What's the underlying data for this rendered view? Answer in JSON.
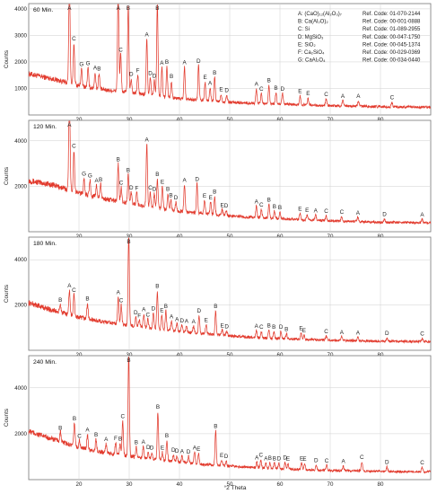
{
  "colors": {
    "trace": "#e23b2e",
    "grid": "#cfcfcf",
    "frame": "#777777"
  },
  "legend": [
    {
      "phase": "A: (CaO)₁₂(Al₂O₃)₇",
      "ref": "Ref. Code: 01-070-2144"
    },
    {
      "phase": "B: Ca(Al₂O)₂",
      "ref": "Ref. Code: 00-001-0888"
    },
    {
      "phase": "C: Si",
      "ref": "Ref. Code: 01-089-2955"
    },
    {
      "phase": "D: MgSiO₃",
      "ref": "Ref. Code: 00-047-1750"
    },
    {
      "phase": "E: SiO₂",
      "ref": "Ref. Code: 00-045-1374"
    },
    {
      "phase": "F: Ca₂SiO₄",
      "ref": "Ref. Code: 00-029-0369"
    },
    {
      "phase": "G: CaAl₂O₄",
      "ref": "Ref. Code: 00-034-0440"
    }
  ],
  "chart_data": [
    {
      "type": "line",
      "title": "60 Min.",
      "ylabel": "Counts",
      "xlabel": "°2 Theta",
      "xlim": [
        10,
        90
      ],
      "ylim": [
        0,
        4200
      ],
      "yticks": [
        1000,
        2000,
        3000,
        4000
      ],
      "xticks": [
        20,
        30,
        40,
        50,
        60,
        70,
        80
      ],
      "baseline": [
        [
          10,
          1550
        ],
        [
          15,
          1350
        ],
        [
          20,
          1100
        ],
        [
          25,
          950
        ],
        [
          30,
          850
        ],
        [
          35,
          720
        ],
        [
          40,
          620
        ],
        [
          45,
          540
        ],
        [
          50,
          480
        ],
        [
          55,
          440
        ],
        [
          60,
          410
        ],
        [
          65,
          380
        ],
        [
          70,
          350
        ],
        [
          75,
          330
        ],
        [
          80,
          310
        ],
        [
          90,
          290
        ]
      ],
      "peaks": [
        {
          "x": 18.1,
          "y": 4050,
          "label": "A"
        },
        {
          "x": 19.0,
          "y": 1550,
          "label": "C"
        },
        {
          "x": 20.5,
          "y": 650,
          "label": "G"
        },
        {
          "x": 21.8,
          "y": 720,
          "label": "G"
        },
        {
          "x": 23.2,
          "y": 600,
          "label": "A"
        },
        {
          "x": 24.0,
          "y": 580,
          "label": "B"
        },
        {
          "x": 27.8,
          "y": 3800,
          "label": "A"
        },
        {
          "x": 28.3,
          "y": 1400,
          "label": "C"
        },
        {
          "x": 29.8,
          "y": 3200,
          "label": "B"
        },
        {
          "x": 30.4,
          "y": 520,
          "label": "D"
        },
        {
          "x": 31.7,
          "y": 700,
          "label": "F"
        },
        {
          "x": 33.5,
          "y": 2100,
          "label": "A"
        },
        {
          "x": 34.2,
          "y": 650,
          "label": "D"
        },
        {
          "x": 35.0,
          "y": 580,
          "label": "D"
        },
        {
          "x": 35.6,
          "y": 3500,
          "label": "B"
        },
        {
          "x": 36.5,
          "y": 1100,
          "label": "A"
        },
        {
          "x": 37.5,
          "y": 1150,
          "label": "B"
        },
        {
          "x": 38.4,
          "y": 620,
          "label": "B"
        },
        {
          "x": 41.0,
          "y": 1200,
          "label": "A"
        },
        {
          "x": 43.8,
          "y": 1300,
          "label": "D"
        },
        {
          "x": 45.1,
          "y": 700,
          "label": "E"
        },
        {
          "x": 46.1,
          "y": 500,
          "label": "A"
        },
        {
          "x": 47.0,
          "y": 900,
          "label": "B"
        },
        {
          "x": 48.3,
          "y": 280,
          "label": "E"
        },
        {
          "x": 49.4,
          "y": 260,
          "label": "D"
        },
        {
          "x": 55.3,
          "y": 550,
          "label": "A"
        },
        {
          "x": 56.3,
          "y": 370,
          "label": "C"
        },
        {
          "x": 57.8,
          "y": 700,
          "label": "B"
        },
        {
          "x": 59.2,
          "y": 420,
          "label": "B"
        },
        {
          "x": 60.5,
          "y": 390,
          "label": "D"
        },
        {
          "x": 64.0,
          "y": 330,
          "label": "E"
        },
        {
          "x": 65.6,
          "y": 260,
          "label": "E"
        },
        {
          "x": 69.2,
          "y": 240,
          "label": "C"
        },
        {
          "x": 72.5,
          "y": 200,
          "label": "A"
        },
        {
          "x": 75.6,
          "y": 200,
          "label": "A"
        },
        {
          "x": 82.3,
          "y": 170,
          "label": "C"
        }
      ]
    },
    {
      "type": "line",
      "title": "120 Min.",
      "ylabel": "Counts",
      "xlabel": "°2 Theta",
      "xlim": [
        10,
        90
      ],
      "ylim": [
        0,
        4900
      ],
      "yticks": [
        2000,
        4000
      ],
      "xticks": [
        20,
        30,
        40,
        50,
        60,
        70,
        80
      ],
      "baseline": [
        [
          10,
          2250
        ],
        [
          15,
          2050
        ],
        [
          20,
          1700
        ],
        [
          25,
          1450
        ],
        [
          30,
          1250
        ],
        [
          35,
          1050
        ],
        [
          40,
          900
        ],
        [
          45,
          790
        ],
        [
          50,
          700
        ],
        [
          55,
          630
        ],
        [
          60,
          570
        ],
        [
          65,
          520
        ],
        [
          70,
          480
        ],
        [
          75,
          450
        ],
        [
          80,
          420
        ],
        [
          90,
          390
        ]
      ],
      "peaks": [
        {
          "x": 18.1,
          "y": 4600,
          "label": "A"
        },
        {
          "x": 19.0,
          "y": 1800,
          "label": "C"
        },
        {
          "x": 21.0,
          "y": 700,
          "label": "G"
        },
        {
          "x": 22.2,
          "y": 680,
          "label": "G"
        },
        {
          "x": 23.5,
          "y": 520,
          "label": "A"
        },
        {
          "x": 24.3,
          "y": 600,
          "label": "B"
        },
        {
          "x": 27.8,
          "y": 1650,
          "label": "B"
        },
        {
          "x": 28.4,
          "y": 650,
          "label": "C"
        },
        {
          "x": 29.8,
          "y": 1250,
          "label": "B"
        },
        {
          "x": 30.4,
          "y": 500,
          "label": "D"
        },
        {
          "x": 31.5,
          "y": 520,
          "label": "F"
        },
        {
          "x": 33.5,
          "y": 2750,
          "label": "A"
        },
        {
          "x": 34.2,
          "y": 650,
          "label": "C"
        },
        {
          "x": 35.0,
          "y": 620,
          "label": "D"
        },
        {
          "x": 35.6,
          "y": 1300,
          "label": "B"
        },
        {
          "x": 36.6,
          "y": 1000,
          "label": "E"
        },
        {
          "x": 37.7,
          "y": 700,
          "label": "B"
        },
        {
          "x": 38.3,
          "y": 450,
          "label": "B"
        },
        {
          "x": 39.3,
          "y": 380,
          "label": "D"
        },
        {
          "x": 41.0,
          "y": 1200,
          "label": "A"
        },
        {
          "x": 43.5,
          "y": 1300,
          "label": "D"
        },
        {
          "x": 45.0,
          "y": 600,
          "label": "E"
        },
        {
          "x": 46.2,
          "y": 540,
          "label": "E"
        },
        {
          "x": 47.0,
          "y": 800,
          "label": "B"
        },
        {
          "x": 48.5,
          "y": 250,
          "label": "E"
        },
        {
          "x": 49.3,
          "y": 230,
          "label": "D"
        },
        {
          "x": 55.3,
          "y": 500,
          "label": "A"
        },
        {
          "x": 56.3,
          "y": 370,
          "label": "C"
        },
        {
          "x": 57.8,
          "y": 600,
          "label": "B"
        },
        {
          "x": 58.9,
          "y": 330,
          "label": "B"
        },
        {
          "x": 60.0,
          "y": 300,
          "label": "B"
        },
        {
          "x": 64.0,
          "y": 280,
          "label": "E"
        },
        {
          "x": 65.4,
          "y": 240,
          "label": "E"
        },
        {
          "x": 67.1,
          "y": 230,
          "label": "A"
        },
        {
          "x": 69.2,
          "y": 220,
          "label": "C"
        },
        {
          "x": 72.3,
          "y": 200,
          "label": "C"
        },
        {
          "x": 75.5,
          "y": 190,
          "label": "A"
        },
        {
          "x": 80.8,
          "y": 150,
          "label": "D"
        },
        {
          "x": 88.3,
          "y": 150,
          "label": "A"
        }
      ]
    },
    {
      "type": "line",
      "title": "180 Min.",
      "ylabel": "Counts",
      "xlabel": "°2 Theta",
      "xlim": [
        10,
        90
      ],
      "ylim": [
        0,
        5000
      ],
      "yticks": [
        2000,
        4000
      ],
      "xticks": [
        20,
        30,
        40,
        50,
        60,
        70,
        80
      ],
      "baseline": [
        [
          10,
          2100
        ],
        [
          15,
          1750
        ],
        [
          20,
          1450
        ],
        [
          25,
          1250
        ],
        [
          30,
          1100
        ],
        [
          35,
          950
        ],
        [
          40,
          830
        ],
        [
          45,
          730
        ],
        [
          50,
          640
        ],
        [
          55,
          570
        ],
        [
          60,
          520
        ],
        [
          65,
          480
        ],
        [
          70,
          450
        ],
        [
          75,
          420
        ],
        [
          80,
          400
        ],
        [
          90,
          380
        ]
      ],
      "peaks": [
        {
          "x": 16.3,
          "y": 350,
          "label": "B"
        },
        {
          "x": 18.1,
          "y": 1100,
          "label": "A"
        },
        {
          "x": 19.0,
          "y": 950,
          "label": "C"
        },
        {
          "x": 21.7,
          "y": 700,
          "label": "B"
        },
        {
          "x": 27.8,
          "y": 1200,
          "label": "A"
        },
        {
          "x": 28.4,
          "y": 850,
          "label": "C"
        },
        {
          "x": 29.9,
          "y": 3950,
          "label": "B"
        },
        {
          "x": 31.3,
          "y": 400,
          "label": "D"
        },
        {
          "x": 32.0,
          "y": 280,
          "label": "F"
        },
        {
          "x": 32.9,
          "y": 600,
          "label": "A"
        },
        {
          "x": 33.7,
          "y": 380,
          "label": "C"
        },
        {
          "x": 34.8,
          "y": 700,
          "label": "D"
        },
        {
          "x": 35.6,
          "y": 1700,
          "label": "B"
        },
        {
          "x": 36.5,
          "y": 650,
          "label": "E"
        },
        {
          "x": 37.3,
          "y": 850,
          "label": "B"
        },
        {
          "x": 38.4,
          "y": 420,
          "label": "A"
        },
        {
          "x": 39.5,
          "y": 330,
          "label": "A"
        },
        {
          "x": 40.5,
          "y": 300,
          "label": "D"
        },
        {
          "x": 41.4,
          "y": 280,
          "label": "A"
        },
        {
          "x": 42.8,
          "y": 300,
          "label": "A"
        },
        {
          "x": 43.9,
          "y": 800,
          "label": "D"
        },
        {
          "x": 45.3,
          "y": 400,
          "label": "E"
        },
        {
          "x": 47.2,
          "y": 1050,
          "label": "B"
        },
        {
          "x": 48.5,
          "y": 230,
          "label": "E"
        },
        {
          "x": 49.4,
          "y": 200,
          "label": "D"
        },
        {
          "x": 55.3,
          "y": 300,
          "label": "A"
        },
        {
          "x": 56.3,
          "y": 280,
          "label": "C"
        },
        {
          "x": 57.8,
          "y": 350,
          "label": "B"
        },
        {
          "x": 58.8,
          "y": 300,
          "label": "B"
        },
        {
          "x": 60.2,
          "y": 320,
          "label": "D"
        },
        {
          "x": 61.3,
          "y": 230,
          "label": "B"
        },
        {
          "x": 64.2,
          "y": 280,
          "label": "E"
        },
        {
          "x": 64.8,
          "y": 200,
          "label": "E"
        },
        {
          "x": 69.2,
          "y": 180,
          "label": "C"
        },
        {
          "x": 72.3,
          "y": 160,
          "label": "A"
        },
        {
          "x": 75.5,
          "y": 160,
          "label": "A"
        },
        {
          "x": 81.3,
          "y": 160,
          "label": "D"
        },
        {
          "x": 88.3,
          "y": 150,
          "label": "C"
        }
      ]
    },
    {
      "type": "line",
      "title": "240 Min.",
      "ylabel": "Counts",
      "xlabel": "°2 Theta",
      "xlim": [
        10,
        90
      ],
      "ylim": [
        0,
        5400
      ],
      "yticks": [
        2000,
        4000
      ],
      "xticks": [
        20,
        30,
        40,
        50,
        60,
        70,
        80
      ],
      "baseline": [
        [
          10,
          2100
        ],
        [
          15,
          1750
        ],
        [
          20,
          1400
        ],
        [
          25,
          1180
        ],
        [
          30,
          1020
        ],
        [
          35,
          880
        ],
        [
          40,
          760
        ],
        [
          45,
          660
        ],
        [
          50,
          580
        ],
        [
          55,
          520
        ],
        [
          60,
          470
        ],
        [
          65,
          430
        ],
        [
          70,
          400
        ],
        [
          75,
          380
        ],
        [
          80,
          360
        ],
        [
          90,
          340
        ]
      ],
      "peaks": [
        {
          "x": 16.3,
          "y": 400,
          "label": "B"
        },
        {
          "x": 19.1,
          "y": 1000,
          "label": "B"
        },
        {
          "x": 20.1,
          "y": 300,
          "label": "C"
        },
        {
          "x": 21.7,
          "y": 650,
          "label": "A"
        },
        {
          "x": 23.4,
          "y": 500,
          "label": "B"
        },
        {
          "x": 25.4,
          "y": 400,
          "label": "A"
        },
        {
          "x": 27.3,
          "y": 500,
          "label": "F"
        },
        {
          "x": 28.2,
          "y": 500,
          "label": "B"
        },
        {
          "x": 28.7,
          "y": 1500,
          "label": "C"
        },
        {
          "x": 29.9,
          "y": 4400,
          "label": "B"
        },
        {
          "x": 31.4,
          "y": 450,
          "label": "B"
        },
        {
          "x": 32.8,
          "y": 500,
          "label": "A"
        },
        {
          "x": 33.8,
          "y": 300,
          "label": "D"
        },
        {
          "x": 34.5,
          "y": 300,
          "label": "D"
        },
        {
          "x": 35.7,
          "y": 2100,
          "label": "B"
        },
        {
          "x": 36.6,
          "y": 350,
          "label": "E"
        },
        {
          "x": 37.5,
          "y": 900,
          "label": "B"
        },
        {
          "x": 38.8,
          "y": 300,
          "label": "D"
        },
        {
          "x": 39.5,
          "y": 280,
          "label": "D"
        },
        {
          "x": 40.5,
          "y": 280,
          "label": "A"
        },
        {
          "x": 41.8,
          "y": 300,
          "label": "D"
        },
        {
          "x": 43.0,
          "y": 500,
          "label": "A"
        },
        {
          "x": 43.8,
          "y": 450,
          "label": "E"
        },
        {
          "x": 47.2,
          "y": 1500,
          "label": "B"
        },
        {
          "x": 48.4,
          "y": 260,
          "label": "E"
        },
        {
          "x": 49.3,
          "y": 230,
          "label": "D"
        },
        {
          "x": 55.4,
          "y": 250,
          "label": "A"
        },
        {
          "x": 56.2,
          "y": 370,
          "label": "C"
        },
        {
          "x": 57.2,
          "y": 230,
          "label": "A"
        },
        {
          "x": 58.0,
          "y": 250,
          "label": "B"
        },
        {
          "x": 58.9,
          "y": 240,
          "label": "B"
        },
        {
          "x": 59.8,
          "y": 260,
          "label": "D"
        },
        {
          "x": 61.0,
          "y": 290,
          "label": "D"
        },
        {
          "x": 61.6,
          "y": 250,
          "label": "E"
        },
        {
          "x": 64.3,
          "y": 280,
          "label": "E"
        },
        {
          "x": 64.9,
          "y": 270,
          "label": "E"
        },
        {
          "x": 67.2,
          "y": 230,
          "label": "D"
        },
        {
          "x": 69.3,
          "y": 230,
          "label": "C"
        },
        {
          "x": 72.6,
          "y": 210,
          "label": "A"
        },
        {
          "x": 76.3,
          "y": 400,
          "label": "C"
        },
        {
          "x": 81.3,
          "y": 200,
          "label": "D"
        },
        {
          "x": 88.3,
          "y": 200,
          "label": "C"
        }
      ]
    }
  ]
}
